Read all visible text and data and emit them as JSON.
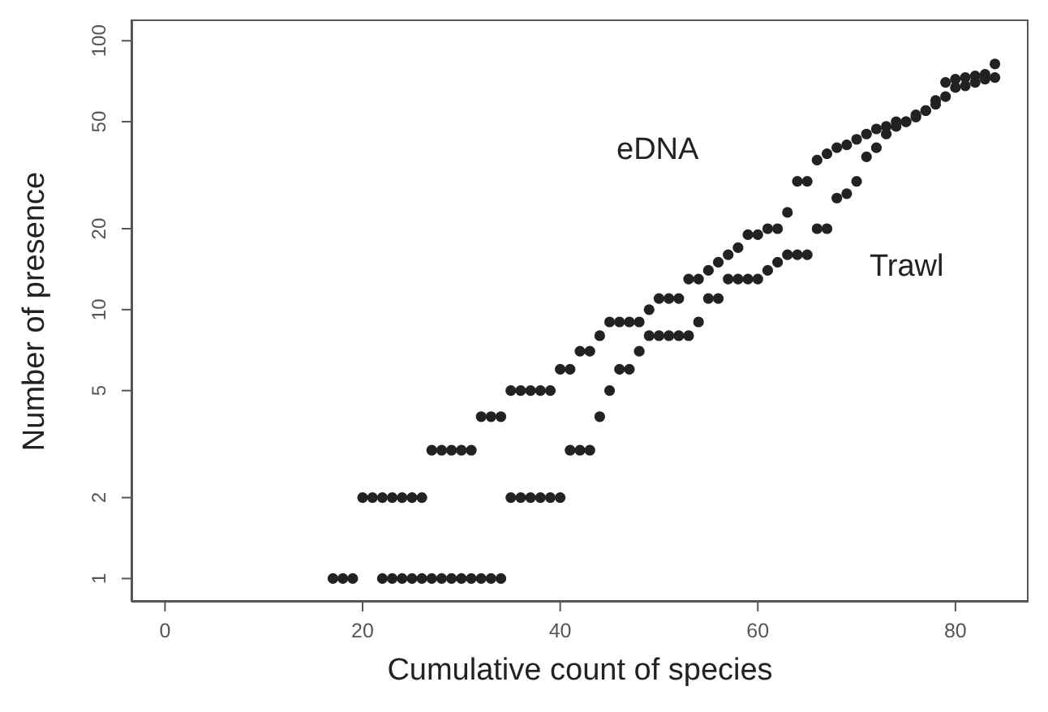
{
  "chart_data": {
    "type": "scatter",
    "xlabel": "Cumulative count of species",
    "ylabel": "Number of presence",
    "log": "y",
    "grid": false,
    "legend": false,
    "marker": "circle",
    "xlim": [
      -3.4,
      87.4
    ],
    "xticks": [
      0,
      20,
      40,
      60,
      80
    ],
    "ylim": [
      0.82,
      120
    ],
    "yticks": [
      1,
      2,
      5,
      10,
      20,
      50,
      100
    ],
    "series": [
      {
        "name": "eDNA",
        "color": "#222222",
        "x": [
          17,
          18,
          19,
          20,
          21,
          22,
          23,
          24,
          25,
          26,
          27,
          28,
          29,
          30,
          31,
          32,
          33,
          34,
          35,
          36,
          37,
          38,
          39,
          40,
          41,
          42,
          43,
          44,
          45,
          46,
          47,
          48,
          49,
          50,
          51,
          52,
          53,
          54,
          55,
          56,
          57,
          58,
          59,
          60,
          61,
          62,
          63,
          64,
          65,
          66,
          67,
          68,
          69,
          70,
          71,
          72,
          73,
          74,
          75,
          76,
          77,
          78,
          79,
          80,
          81,
          82,
          83,
          84
        ],
        "values": [
          1,
          1,
          1,
          2,
          2,
          2,
          2,
          2,
          2,
          2,
          3,
          3,
          3,
          3,
          3,
          4,
          4,
          4,
          5,
          5,
          5,
          5,
          5,
          6,
          6,
          7,
          7,
          8,
          9,
          9,
          9,
          9,
          10,
          11,
          11,
          11,
          13,
          13,
          14,
          15,
          16,
          17,
          19,
          19,
          20,
          20,
          23,
          30,
          30,
          36,
          38,
          40,
          41,
          43,
          45,
          47,
          48,
          50,
          50,
          53,
          55,
          60,
          70,
          72,
          73,
          74,
          75,
          82
        ]
      },
      {
        "name": "Trawl",
        "color": "#222222",
        "x": [
          22,
          23,
          24,
          25,
          26,
          27,
          28,
          29,
          30,
          31,
          32,
          33,
          34,
          35,
          36,
          37,
          38,
          39,
          40,
          41,
          42,
          43,
          44,
          45,
          46,
          47,
          48,
          49,
          50,
          51,
          52,
          53,
          54,
          55,
          56,
          57,
          58,
          59,
          60,
          61,
          62,
          63,
          64,
          65,
          66,
          67,
          68,
          69,
          70,
          71,
          72,
          73,
          74,
          75,
          76,
          77,
          78,
          79,
          80,
          81,
          82,
          83,
          84
        ],
        "values": [
          1,
          1,
          1,
          1,
          1,
          1,
          1,
          1,
          1,
          1,
          1,
          1,
          1,
          2,
          2,
          2,
          2,
          2,
          2,
          3,
          3,
          3,
          4,
          5,
          6,
          6,
          7,
          8,
          8,
          8,
          8,
          8,
          9,
          11,
          11,
          13,
          13,
          13,
          13,
          14,
          15,
          16,
          16,
          16,
          20,
          20,
          26,
          27,
          30,
          37,
          40,
          45,
          48,
          50,
          52,
          55,
          58,
          62,
          67,
          68,
          70,
          72,
          73
        ]
      }
    ]
  }
}
